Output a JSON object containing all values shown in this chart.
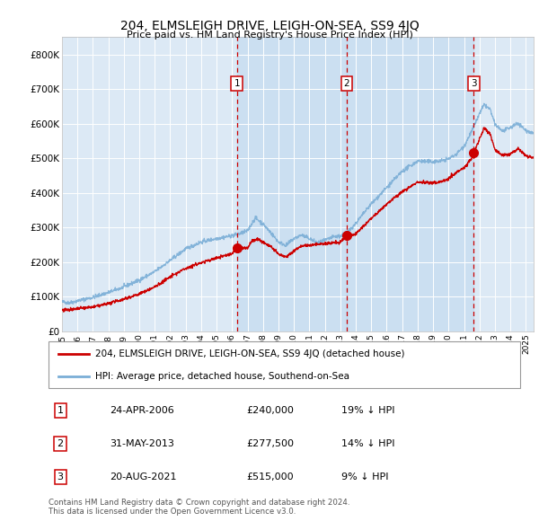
{
  "title": "204, ELMSLEIGH DRIVE, LEIGH-ON-SEA, SS9 4JQ",
  "subtitle": "Price paid vs. HM Land Registry's House Price Index (HPI)",
  "xlim": [
    1995.0,
    2025.5
  ],
  "ylim": [
    0,
    850000
  ],
  "yticks": [
    0,
    100000,
    200000,
    300000,
    400000,
    500000,
    600000,
    700000,
    800000
  ],
  "ytick_labels": [
    "£0",
    "£100K",
    "£200K",
    "£300K",
    "£400K",
    "£500K",
    "£600K",
    "£700K",
    "£800K"
  ],
  "xtick_years": [
    1995,
    1996,
    1997,
    1998,
    1999,
    2000,
    2001,
    2002,
    2003,
    2004,
    2005,
    2006,
    2007,
    2008,
    2009,
    2010,
    2011,
    2012,
    2013,
    2014,
    2015,
    2016,
    2017,
    2018,
    2019,
    2020,
    2021,
    2022,
    2023,
    2024,
    2025
  ],
  "sale_dates": [
    2006.31,
    2013.41,
    2021.63
  ],
  "sale_prices": [
    240000,
    277500,
    515000
  ],
  "sale_labels": [
    "1",
    "2",
    "3"
  ],
  "legend_red": "204, ELMSLEIGH DRIVE, LEIGH-ON-SEA, SS9 4JQ (detached house)",
  "legend_blue": "HPI: Average price, detached house, Southend-on-Sea",
  "table_rows": [
    [
      "1",
      "24-APR-2006",
      "£240,000",
      "19% ↓ HPI"
    ],
    [
      "2",
      "31-MAY-2013",
      "£277,500",
      "14% ↓ HPI"
    ],
    [
      "3",
      "20-AUG-2021",
      "£515,000",
      "9% ↓ HPI"
    ]
  ],
  "footer": "Contains HM Land Registry data © Crown copyright and database right 2024.\nThis data is licensed under the Open Government Licence v3.0.",
  "bg_color": "#dce9f5",
  "grid_color": "#ffffff",
  "red_color": "#cc0000",
  "blue_color": "#7aaed6"
}
